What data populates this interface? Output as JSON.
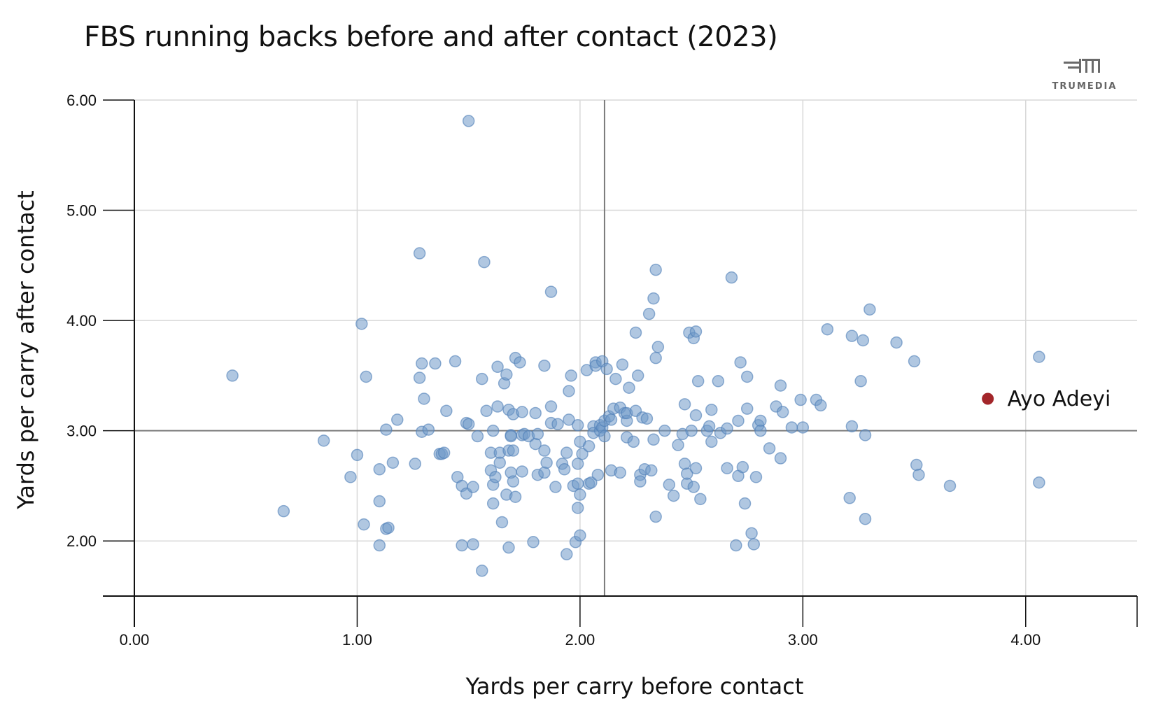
{
  "chart_data": {
    "type": "scatter",
    "title": "FBS running backs before and after contact (2023)",
    "xlabel": "Yards per carry before contact",
    "ylabel": "Yards per carry after contact",
    "xlim": [
      0,
      4.5
    ],
    "ylim": [
      1.5,
      6.0
    ],
    "x_ticks": [
      "0.00",
      "1.00",
      "2.00",
      "3.00",
      "4.00"
    ],
    "y_ticks": [
      "2.00",
      "3.00",
      "4.00",
      "5.00",
      "6.00"
    ],
    "reference_lines": {
      "x": 2.11,
      "y": 3.0
    },
    "grid": true,
    "point_color": "#6f99c9",
    "highlight_color": "#a3262a",
    "highlight": {
      "label": "Ayo Adeyi",
      "x": 3.83,
      "y": 3.29
    },
    "points": [
      [
        0.44,
        3.5
      ],
      [
        0.67,
        2.27
      ],
      [
        0.85,
        2.91
      ],
      [
        0.97,
        2.58
      ],
      [
        1.0,
        2.78
      ],
      [
        1.02,
        3.97
      ],
      [
        1.03,
        2.15
      ],
      [
        1.04,
        3.49
      ],
      [
        1.1,
        2.65
      ],
      [
        1.1,
        2.36
      ],
      [
        1.1,
        1.96
      ],
      [
        1.13,
        3.01
      ],
      [
        1.13,
        2.11
      ],
      [
        1.14,
        2.12
      ],
      [
        1.16,
        2.71
      ],
      [
        1.18,
        3.1
      ],
      [
        1.26,
        2.7
      ],
      [
        1.28,
        4.61
      ],
      [
        1.28,
        3.48
      ],
      [
        1.29,
        3.61
      ],
      [
        1.29,
        2.99
      ],
      [
        1.3,
        3.29
      ],
      [
        1.32,
        3.01
      ],
      [
        1.35,
        3.61
      ],
      [
        1.37,
        2.79
      ],
      [
        1.38,
        2.79
      ],
      [
        1.39,
        2.8
      ],
      [
        1.4,
        3.18
      ],
      [
        1.44,
        3.63
      ],
      [
        1.45,
        2.58
      ],
      [
        1.47,
        2.5
      ],
      [
        1.47,
        1.96
      ],
      [
        1.49,
        2.43
      ],
      [
        1.49,
        3.07
      ],
      [
        1.5,
        3.06
      ],
      [
        1.5,
        5.81
      ],
      [
        1.52,
        2.49
      ],
      [
        1.52,
        1.97
      ],
      [
        1.54,
        2.95
      ],
      [
        1.56,
        3.47
      ],
      [
        1.56,
        1.73
      ],
      [
        1.57,
        4.53
      ],
      [
        1.58,
        3.18
      ],
      [
        1.6,
        2.8
      ],
      [
        1.6,
        2.64
      ],
      [
        1.61,
        2.34
      ],
      [
        1.61,
        2.51
      ],
      [
        1.61,
        3.0
      ],
      [
        1.62,
        2.58
      ],
      [
        1.63,
        3.58
      ],
      [
        1.63,
        3.22
      ],
      [
        1.64,
        2.8
      ],
      [
        1.64,
        2.71
      ],
      [
        1.65,
        2.17
      ],
      [
        1.66,
        3.43
      ],
      [
        1.67,
        3.51
      ],
      [
        1.67,
        2.42
      ],
      [
        1.68,
        2.82
      ],
      [
        1.68,
        3.19
      ],
      [
        1.68,
        1.94
      ],
      [
        1.69,
        2.96
      ],
      [
        1.69,
        2.95
      ],
      [
        1.69,
        2.62
      ],
      [
        1.7,
        2.54
      ],
      [
        1.7,
        3.15
      ],
      [
        1.7,
        2.82
      ],
      [
        1.71,
        2.4
      ],
      [
        1.71,
        3.66
      ],
      [
        1.73,
        3.62
      ],
      [
        1.74,
        3.17
      ],
      [
        1.74,
        2.96
      ],
      [
        1.74,
        2.63
      ],
      [
        1.75,
        2.97
      ],
      [
        1.77,
        2.95
      ],
      [
        1.79,
        1.99
      ],
      [
        1.8,
        3.16
      ],
      [
        1.8,
        2.88
      ],
      [
        1.81,
        2.6
      ],
      [
        1.81,
        2.97
      ],
      [
        1.84,
        3.59
      ],
      [
        1.84,
        2.82
      ],
      [
        1.84,
        2.62
      ],
      [
        1.85,
        2.71
      ],
      [
        1.87,
        3.22
      ],
      [
        1.87,
        4.26
      ],
      [
        1.87,
        3.07
      ],
      [
        1.89,
        2.49
      ],
      [
        1.9,
        3.06
      ],
      [
        1.92,
        2.7
      ],
      [
        1.93,
        2.65
      ],
      [
        1.94,
        2.8
      ],
      [
        1.94,
        1.88
      ],
      [
        1.95,
        3.36
      ],
      [
        1.95,
        3.1
      ],
      [
        1.96,
        3.5
      ],
      [
        1.97,
        2.5
      ],
      [
        1.98,
        1.99
      ],
      [
        1.99,
        2.7
      ],
      [
        1.99,
        2.52
      ],
      [
        1.99,
        2.3
      ],
      [
        1.99,
        3.05
      ],
      [
        2.0,
        2.9
      ],
      [
        2.0,
        2.42
      ],
      [
        2.0,
        2.05
      ],
      [
        2.01,
        2.79
      ],
      [
        2.03,
        3.55
      ],
      [
        2.04,
        2.52
      ],
      [
        2.04,
        2.86
      ],
      [
        2.05,
        2.53
      ],
      [
        2.06,
        3.04
      ],
      [
        2.06,
        2.98
      ],
      [
        2.07,
        3.62
      ],
      [
        2.07,
        3.59
      ],
      [
        2.08,
        2.6
      ],
      [
        2.09,
        3.0
      ],
      [
        2.09,
        3.05
      ],
      [
        2.1,
        3.63
      ],
      [
        2.1,
        3.03
      ],
      [
        2.11,
        3.09
      ],
      [
        2.11,
        2.95
      ],
      [
        2.12,
        3.56
      ],
      [
        2.13,
        3.13
      ],
      [
        2.14,
        3.1
      ],
      [
        2.14,
        2.64
      ],
      [
        2.15,
        3.2
      ],
      [
        2.16,
        3.47
      ],
      [
        2.18,
        3.21
      ],
      [
        2.18,
        2.62
      ],
      [
        2.19,
        3.6
      ],
      [
        2.2,
        3.16
      ],
      [
        2.21,
        3.09
      ],
      [
        2.21,
        3.16
      ],
      [
        2.21,
        2.94
      ],
      [
        2.22,
        3.39
      ],
      [
        2.24,
        2.9
      ],
      [
        2.25,
        3.89
      ],
      [
        2.25,
        3.18
      ],
      [
        2.26,
        3.5
      ],
      [
        2.27,
        2.6
      ],
      [
        2.27,
        2.54
      ],
      [
        2.28,
        3.12
      ],
      [
        2.29,
        2.65
      ],
      [
        2.3,
        3.11
      ],
      [
        2.31,
        4.06
      ],
      [
        2.32,
        2.64
      ],
      [
        2.33,
        4.2
      ],
      [
        2.33,
        2.92
      ],
      [
        2.34,
        4.46
      ],
      [
        2.34,
        3.66
      ],
      [
        2.34,
        2.22
      ],
      [
        2.35,
        3.76
      ],
      [
        2.38,
        3.0
      ],
      [
        2.4,
        2.51
      ],
      [
        2.42,
        2.41
      ],
      [
        2.44,
        2.87
      ],
      [
        2.46,
        2.97
      ],
      [
        2.47,
        3.24
      ],
      [
        2.47,
        2.7
      ],
      [
        2.48,
        2.52
      ],
      [
        2.48,
        2.61
      ],
      [
        2.49,
        3.89
      ],
      [
        2.5,
        3.0
      ],
      [
        2.51,
        3.84
      ],
      [
        2.51,
        2.49
      ],
      [
        2.52,
        3.9
      ],
      [
        2.52,
        3.14
      ],
      [
        2.52,
        2.66
      ],
      [
        2.53,
        3.45
      ],
      [
        2.54,
        2.38
      ],
      [
        2.57,
        3.0
      ],
      [
        2.58,
        3.04
      ],
      [
        2.59,
        2.9
      ],
      [
        2.59,
        3.19
      ],
      [
        2.62,
        3.45
      ],
      [
        2.63,
        2.98
      ],
      [
        2.66,
        3.02
      ],
      [
        2.66,
        2.66
      ],
      [
        2.68,
        4.39
      ],
      [
        2.7,
        1.96
      ],
      [
        2.71,
        3.09
      ],
      [
        2.71,
        2.59
      ],
      [
        2.72,
        3.62
      ],
      [
        2.73,
        2.67
      ],
      [
        2.74,
        2.34
      ],
      [
        2.75,
        3.2
      ],
      [
        2.75,
        3.49
      ],
      [
        2.77,
        2.07
      ],
      [
        2.78,
        1.97
      ],
      [
        2.79,
        2.58
      ],
      [
        2.8,
        3.05
      ],
      [
        2.81,
        3.09
      ],
      [
        2.81,
        3.0
      ],
      [
        2.85,
        2.84
      ],
      [
        2.88,
        3.22
      ],
      [
        2.9,
        2.75
      ],
      [
        2.9,
        3.41
      ],
      [
        2.91,
        3.17
      ],
      [
        2.95,
        3.03
      ],
      [
        2.99,
        3.28
      ],
      [
        3.0,
        3.03
      ],
      [
        3.06,
        3.28
      ],
      [
        3.08,
        3.23
      ],
      [
        3.11,
        3.92
      ],
      [
        3.21,
        2.39
      ],
      [
        3.22,
        3.86
      ],
      [
        3.22,
        3.04
      ],
      [
        3.26,
        3.45
      ],
      [
        3.27,
        3.82
      ],
      [
        3.28,
        2.96
      ],
      [
        3.28,
        2.2
      ],
      [
        3.3,
        4.1
      ],
      [
        3.42,
        3.8
      ],
      [
        3.5,
        3.63
      ],
      [
        3.51,
        2.69
      ],
      [
        3.52,
        2.6
      ],
      [
        3.66,
        2.5
      ],
      [
        4.06,
        3.67
      ],
      [
        4.06,
        2.53
      ]
    ]
  },
  "brand": {
    "name": "TRUMEDIA"
  }
}
